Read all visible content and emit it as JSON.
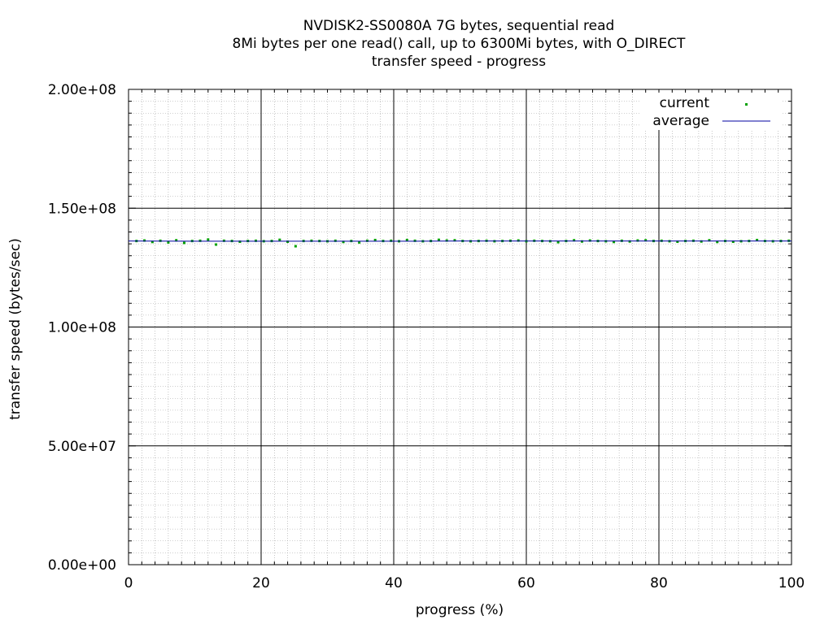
{
  "chart_data": {
    "type": "scatter",
    "title": [
      "NVDISK2-SS0080A 7G bytes, sequential read",
      "8Mi bytes per one read() call, up to 6300Mi bytes, with O_DIRECT",
      "transfer speed - progress"
    ],
    "xlabel": "progress (%)",
    "ylabel": "transfer speed (bytes/sec)",
    "xlim": [
      0,
      100
    ],
    "ylim": [
      0,
      200000000
    ],
    "x_ticks": [
      0,
      20,
      40,
      60,
      80,
      100
    ],
    "x_tick_labels": [
      "0",
      "20",
      "40",
      "60",
      "80",
      "100"
    ],
    "y_ticks": [
      0,
      50000000,
      100000000,
      150000000,
      200000000
    ],
    "y_tick_labels": [
      "0.00e+00",
      "5.00e+07",
      "1.00e+08",
      "1.50e+08",
      "2.00e+08"
    ],
    "grid": true,
    "legend_position": "top-right",
    "series": [
      {
        "name": "current",
        "style": "points",
        "color": "#00a000",
        "x": [
          1.2,
          2.4,
          3.6,
          4.8,
          6.0,
          7.2,
          8.4,
          9.6,
          10.8,
          12.0,
          13.2,
          14.4,
          15.6,
          16.8,
          18.0,
          19.2,
          20.4,
          21.6,
          22.8,
          24.0,
          25.2,
          26.4,
          27.6,
          28.8,
          30.0,
          31.2,
          32.4,
          33.6,
          34.8,
          36.0,
          37.2,
          38.4,
          39.6,
          40.8,
          42.0,
          43.2,
          44.4,
          45.6,
          46.8,
          48.0,
          49.2,
          50.4,
          51.6,
          52.8,
          54.0,
          55.2,
          56.4,
          57.6,
          58.8,
          60.0,
          61.2,
          62.4,
          63.6,
          64.8,
          66.0,
          67.2,
          68.4,
          69.6,
          70.8,
          72.0,
          73.2,
          74.4,
          75.6,
          76.8,
          78.0,
          79.2,
          80.4,
          81.6,
          82.8,
          84.0,
          85.2,
          86.4,
          87.6,
          88.8,
          90.0,
          91.2,
          92.4,
          93.6,
          94.8,
          96.0,
          97.2,
          98.4,
          99.6
        ],
        "y": [
          136200000,
          136400000,
          135800000,
          136300000,
          135600000,
          136500000,
          135400000,
          136200000,
          136300000,
          136800000,
          134700000,
          136300000,
          136200000,
          135900000,
          136200000,
          136300000,
          136100000,
          136200000,
          136700000,
          135900000,
          134000000,
          136200000,
          136300000,
          136200000,
          136100000,
          136300000,
          135800000,
          136200000,
          135600000,
          136300000,
          136600000,
          136200000,
          136300000,
          136100000,
          136600000,
          136300000,
          136100000,
          136200000,
          136700000,
          136400000,
          136500000,
          136200000,
          136100000,
          136200000,
          136300000,
          136100000,
          136200000,
          136300000,
          136400000,
          136100000,
          136300000,
          136200000,
          136100000,
          135700000,
          136200000,
          136500000,
          136000000,
          136400000,
          136200000,
          136100000,
          135800000,
          136300000,
          136000000,
          136400000,
          136500000,
          136200000,
          136300000,
          136100000,
          135900000,
          136200000,
          136300000,
          136000000,
          136500000,
          135800000,
          136200000,
          135900000,
          136100000,
          136200000,
          136600000,
          136200000,
          136100000,
          136200000,
          136300000
        ]
      },
      {
        "name": "average",
        "style": "line",
        "color": "#0000a0",
        "x": [
          0,
          10,
          20,
          30,
          40,
          50,
          60,
          70,
          80,
          90,
          100
        ],
        "y": [
          136200000,
          136100000,
          136100000,
          136100000,
          136100000,
          136200000,
          136200000,
          136200000,
          136200000,
          136200000,
          136200000
        ]
      }
    ]
  }
}
